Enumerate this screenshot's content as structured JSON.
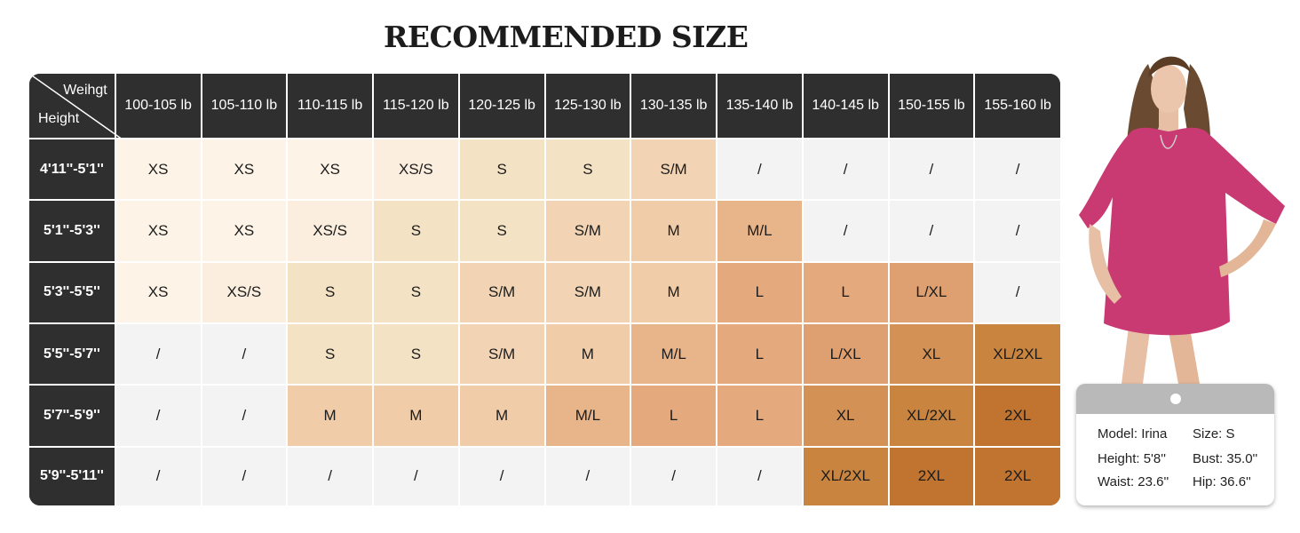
{
  "title": "RECOMMENDED SIZE",
  "table": {
    "corner_weight": "Weihgt",
    "corner_height": "Height",
    "weights": [
      "100-105 lb",
      "105-110 lb",
      "110-115 lb",
      "115-120 lb",
      "120-125 lb",
      "125-130 lb",
      "130-135 lb",
      "135-140 lb",
      "140-145 lb",
      "150-155 lb",
      "155-160 lb"
    ],
    "rows": [
      {
        "height": "4'11''-5'1''",
        "sizes": [
          "XS",
          "XS",
          "XS",
          "XS/S",
          "S",
          "S",
          "S/M",
          "/",
          "/",
          "/",
          "/"
        ]
      },
      {
        "height": "5'1''-5'3''",
        "sizes": [
          "XS",
          "XS",
          "XS/S",
          "S",
          "S",
          "S/M",
          "M",
          "M/L",
          "/",
          "/",
          "/"
        ]
      },
      {
        "height": "5'3''-5'5''",
        "sizes": [
          "XS",
          "XS/S",
          "S",
          "S",
          "S/M",
          "S/M",
          "M",
          "L",
          "L",
          "L/XL",
          "/"
        ]
      },
      {
        "height": "5'5''-5'7''",
        "sizes": [
          "/",
          "/",
          "S",
          "S",
          "S/M",
          "M",
          "M/L",
          "L",
          "L/XL",
          "XL",
          "XL/2XL"
        ]
      },
      {
        "height": "5'7''-5'9''",
        "sizes": [
          "/",
          "/",
          "M",
          "M",
          "M",
          "M/L",
          "L",
          "L",
          "XL",
          "XL/2XL",
          "2XL"
        ]
      },
      {
        "height": "5'9''-5'11''",
        "sizes": [
          "/",
          "/",
          "/",
          "/",
          "/",
          "/",
          "/",
          "/",
          "XL/2XL",
          "2XL",
          "2XL"
        ]
      }
    ]
  },
  "size_colors": {
    "XS": "#fdf4e7",
    "XS/S": "#fbeede",
    "S": "#f4e2c4",
    "S/M": "#f2d3b4",
    "M": "#f0cca8",
    "M/L": "#e8b48a",
    "L": "#e4aa7e",
    "L/XL": "#dea070",
    "XL": "#d39155",
    "XL/2XL": "#c98540",
    "2XL": "#c0742f",
    "/": "#f3f3f3"
  },
  "model": {
    "name": "Model: Irina",
    "size": "Size: S",
    "height": "Height: 5'8''",
    "bust": "Bust: 35.0''",
    "waist": "Waist: 23.6''",
    "hip": "Hip: 36.6''",
    "shirt_color": "#c93a72"
  }
}
